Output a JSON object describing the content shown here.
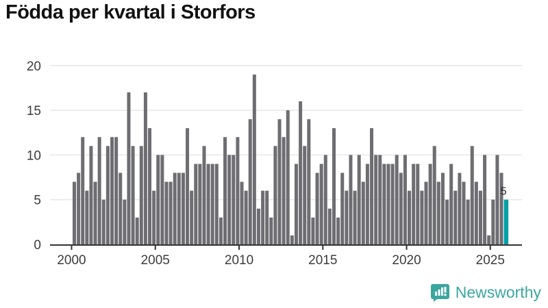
{
  "title": "Födda per kvartal i Storfors",
  "footer": {
    "brand": "Newsworthy",
    "logo_icon": "speech-bubble-bar-chart-icon"
  },
  "colors": {
    "bar": "#6d6d72",
    "highlight": "#00a0a4",
    "grid": "#e7e7e7",
    "axis": "#333333",
    "tick_text": "#3b3b3b",
    "title_text": "#111111",
    "brand": "#3aa79e",
    "annotation_text": "#222222"
  },
  "chart_data": {
    "type": "bar",
    "title": "Födda per kvartal i Storfors",
    "xlabel": "",
    "ylabel": "",
    "ylim": [
      0,
      20
    ],
    "grid": "horizontal",
    "y_ticks": [
      0,
      5,
      10,
      15,
      20
    ],
    "x_tick_labels": [
      "2000",
      "2005",
      "2010",
      "2015",
      "2020",
      "2025"
    ],
    "start_quarter": "2000-Q1",
    "end_quarter": "2025-Q4",
    "quarters_per_year": 4,
    "values": [
      7,
      8,
      12,
      6,
      11,
      7,
      12,
      5,
      11,
      12,
      12,
      8,
      5,
      17,
      11,
      3,
      11,
      17,
      13,
      6,
      10,
      10,
      7,
      7,
      8,
      8,
      8,
      13,
      6,
      9,
      9,
      11,
      9,
      9,
      9,
      3,
      12,
      10,
      10,
      12,
      7,
      6,
      14,
      19,
      4,
      6,
      6,
      3,
      11,
      14,
      12,
      15,
      1,
      9,
      16,
      11,
      14,
      3,
      8,
      9,
      10,
      4,
      13,
      3,
      8,
      6,
      10,
      6,
      10,
      7,
      9,
      13,
      10,
      10,
      9,
      9,
      9,
      10,
      8,
      10,
      6,
      9,
      9,
      6,
      7,
      9,
      11,
      7,
      8,
      5,
      9,
      6,
      8,
      7,
      5,
      11,
      7,
      6,
      10,
      1,
      5,
      10,
      8,
      5
    ],
    "highlight_last": true,
    "last_value_label": "5",
    "legend": null
  }
}
